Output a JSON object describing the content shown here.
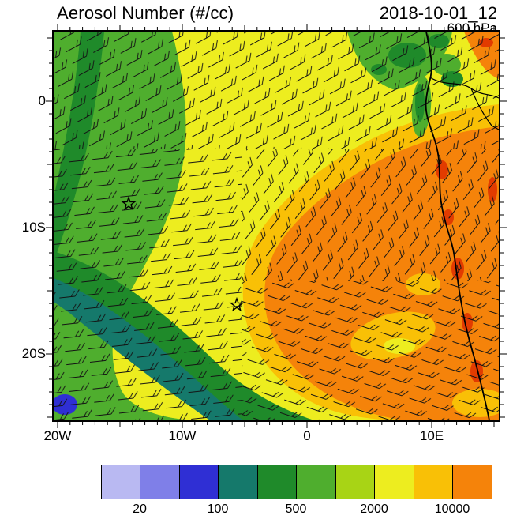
{
  "header": {
    "title": "Aerosol Number (#/cc)",
    "datetime": "2018-10-01_12",
    "level": "600 hPa"
  },
  "axes": {
    "y_ticks": [
      "0",
      "10S",
      "20S"
    ],
    "x_ticks": [
      "20W",
      "10W",
      "0",
      "10E"
    ]
  },
  "colorbar": {
    "labels": [
      "20",
      "100",
      "500",
      "2000",
      "10000"
    ],
    "colors": [
      "#ffffff",
      "#b9b9f2",
      "#7f7fe8",
      "#2f2fd4",
      "#15796b",
      "#1f8a2a",
      "#4fae2e",
      "#a8d415",
      "#eded1f",
      "#f9c006",
      "#f5830a"
    ]
  },
  "chart_data": {
    "type": "heatmap",
    "title": "Aerosol Number (#/cc)",
    "valid_time": "2018-10-01_12",
    "pressure_level": "600 hPa",
    "x_axis": {
      "tick_labels": [
        "20W",
        "10W",
        "0",
        "10E"
      ],
      "lon_range_deg": [
        -20.3,
        15.4
      ]
    },
    "y_axis": {
      "tick_labels": [
        "0",
        "10S",
        "20S"
      ],
      "lat_range_deg": [
        -25.3,
        5.6
      ]
    },
    "colorbar": {
      "units": "#/cc",
      "scale": "discrete filled contours, log-like spacing",
      "boundary_labels": [
        20,
        100,
        500,
        2000,
        10000
      ],
      "colors": [
        "#ffffff",
        "#b9b9f2",
        "#7f7fe8",
        "#2f2fd4",
        "#15796b",
        "#1f8a2a",
        "#4fae2e",
        "#a8d415",
        "#eded1f",
        "#f9c006",
        "#f5830a"
      ]
    },
    "overlays": [
      "wind barbs at every grid point",
      "African west coastline",
      "country borders near Gulf of Guinea",
      "two star location markers"
    ],
    "markers": [
      {
        "symbol": "star",
        "lon_approx": -14.3,
        "lat_approx": -8.1
      },
      {
        "symbol": "star",
        "lon_approx": -5.6,
        "lat_approx": -16.2
      }
    ],
    "field_summary": [
      {
        "region": "large plume over central/eastern South Atlantic toward Angolan coast",
        "approx_value": "2000-10000+ #/cc (orange, small red patches near coast)"
      },
      {
        "region": "broad band across the north and center of domain",
        "approx_value": "~1000-2000 #/cc (yellow)"
      },
      {
        "region": "northwest quadrant",
        "approx_value": "~500-2000 #/cc (green to yellow-green)"
      },
      {
        "region": "southwest sweep curving to bottom center",
        "approx_value": "~100-500 #/cc (dark green / teal bands)"
      },
      {
        "region": "far southwest corner",
        "approx_value": "~20-100 #/cc (small blue patch)"
      },
      {
        "region": "wind pattern",
        "approx_value": "anticyclonic gyre centered near the southern star marker"
      }
    ]
  }
}
